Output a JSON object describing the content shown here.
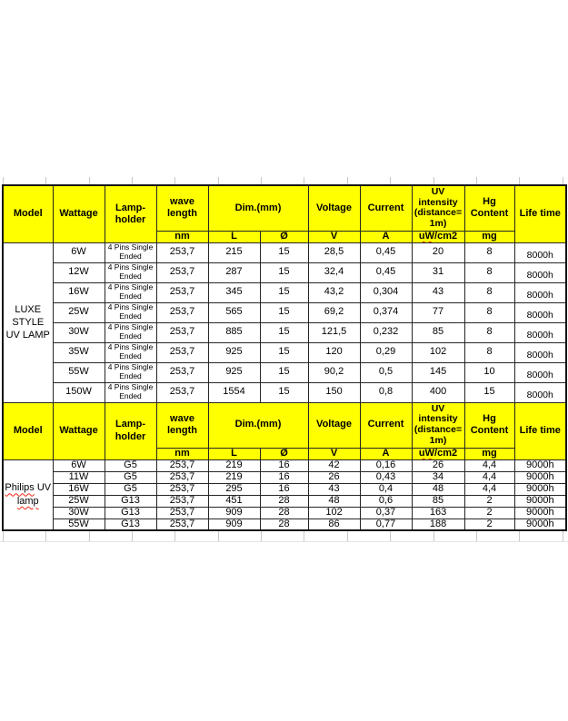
{
  "colors": {
    "header_bg": "#ffff00",
    "border": "#262626",
    "text": "#000000",
    "spellcheck_red": "#f02511",
    "gridline_gray": "#c9c9c9"
  },
  "table": {
    "column_headers": {
      "model": "Model",
      "wattage": "Wattage",
      "lamp_holder": "Lamp-\nholder",
      "wave_length": "wave\nlength",
      "dim": "Dim.(mm)",
      "voltage": "Voltage",
      "current": "Current",
      "uv_intensity": "UV\nintensity\n(distance=\n1m)",
      "hg_content": "Hg\nContent",
      "life_time": "Life time"
    },
    "unit_row": {
      "nm": "nm",
      "l": "L",
      "dia": "Ø",
      "v": "V",
      "a": "A",
      "uv_marked": "uW",
      "uv_rest": "/cm2",
      "mg": "mg"
    },
    "sections": [
      {
        "model_lines": [
          [
            {
              "text": "LUXE STYLE",
              "misspell": false
            }
          ],
          [
            {
              "text": "UV LAMP",
              "misspell": false
            }
          ]
        ],
        "rows": [
          {
            "wattage": "6W",
            "lamp": "4 Pins Single Ended",
            "nm": "253,7",
            "l": "215",
            "dia": "15",
            "v": "28,5",
            "a": "0,45",
            "uv": "20",
            "mg": "8",
            "life": "8000h"
          },
          {
            "wattage": "12W",
            "lamp": "4 Pins Single Ended",
            "nm": "253,7",
            "l": "287",
            "dia": "15",
            "v": "32,4",
            "a": "0,45",
            "uv": "31",
            "mg": "8",
            "life": "8000h"
          },
          {
            "wattage": "16W",
            "lamp": "4 Pins Single Ended",
            "nm": "253,7",
            "l": "345",
            "dia": "15",
            "v": "43,2",
            "a": "0,304",
            "uv": "43",
            "mg": "8",
            "life": "8000h"
          },
          {
            "wattage": "25W",
            "lamp": "4 Pins Single Ended",
            "nm": "253,7",
            "l": "565",
            "dia": "15",
            "v": "69,2",
            "a": "0,374",
            "uv": "77",
            "mg": "8",
            "life": "8000h"
          },
          {
            "wattage": "30W",
            "lamp": "4 Pins Single Ended",
            "nm": "253,7",
            "l": "885",
            "dia": "15",
            "v": "121,5",
            "a": "0,232",
            "uv": "85",
            "mg": "8",
            "life": "8000h"
          },
          {
            "wattage": "35W",
            "lamp": "4 Pins Single Ended",
            "nm": "253,7",
            "l": "925",
            "dia": "15",
            "v": "120",
            "a": "0,29",
            "uv": "102",
            "mg": "8",
            "life": "8000h"
          },
          {
            "wattage": "55W",
            "lamp": "4 Pins Single Ended",
            "nm": "253,7",
            "l": "925",
            "dia": "15",
            "v": "90,2",
            "a": "0,5",
            "uv": "145",
            "mg": "10",
            "life": "8000h"
          },
          {
            "wattage": "150W",
            "lamp": "4 Pins Single Ended",
            "nm": "253,7",
            "l": "1554",
            "dia": "15",
            "v": "150",
            "a": "0,8",
            "uv": "400",
            "mg": "15",
            "life": "8000h"
          }
        ]
      },
      {
        "model_lines": [
          [
            {
              "text": "Philips",
              "misspell": true
            },
            {
              "text": " UV",
              "misspell": false
            }
          ],
          [
            {
              "text": "lamp",
              "misspell": true
            }
          ]
        ],
        "rows": [
          {
            "wattage": "6W",
            "lamp": "G5",
            "nm": "253,7",
            "l": "219",
            "dia": "16",
            "v": "42",
            "a": "0,16",
            "uv": "26",
            "mg": "4,4",
            "life": "9000h"
          },
          {
            "wattage": "11W",
            "lamp": "G5",
            "nm": "253,7",
            "l": "219",
            "dia": "16",
            "v": "26",
            "a": "0,43",
            "uv": "34",
            "mg": "4,4",
            "life": "9000h"
          },
          {
            "wattage": "16W",
            "lamp": "G5",
            "nm": "253,7",
            "l": "295",
            "dia": "16",
            "v": "43",
            "a": "0,4",
            "uv": "48",
            "mg": "4,4",
            "life": "9000h"
          },
          {
            "wattage": "25W",
            "lamp": "G13",
            "nm": "253,7",
            "l": "451",
            "dia": "28",
            "v": "48",
            "a": "0,6",
            "uv": "85",
            "mg": "2",
            "life": "9000h"
          },
          {
            "wattage": "30W",
            "lamp": "G13",
            "nm": "253,7",
            "l": "909",
            "dia": "28",
            "v": "102",
            "a": "0,37",
            "uv": "163",
            "mg": "2",
            "life": "9000h"
          },
          {
            "wattage": "55W",
            "lamp": "G13",
            "nm": "253,7",
            "l": "909",
            "dia": "28",
            "v": "86",
            "a": "0,77",
            "uv": "188",
            "mg": "2",
            "life": "9000h"
          }
        ]
      }
    ]
  }
}
